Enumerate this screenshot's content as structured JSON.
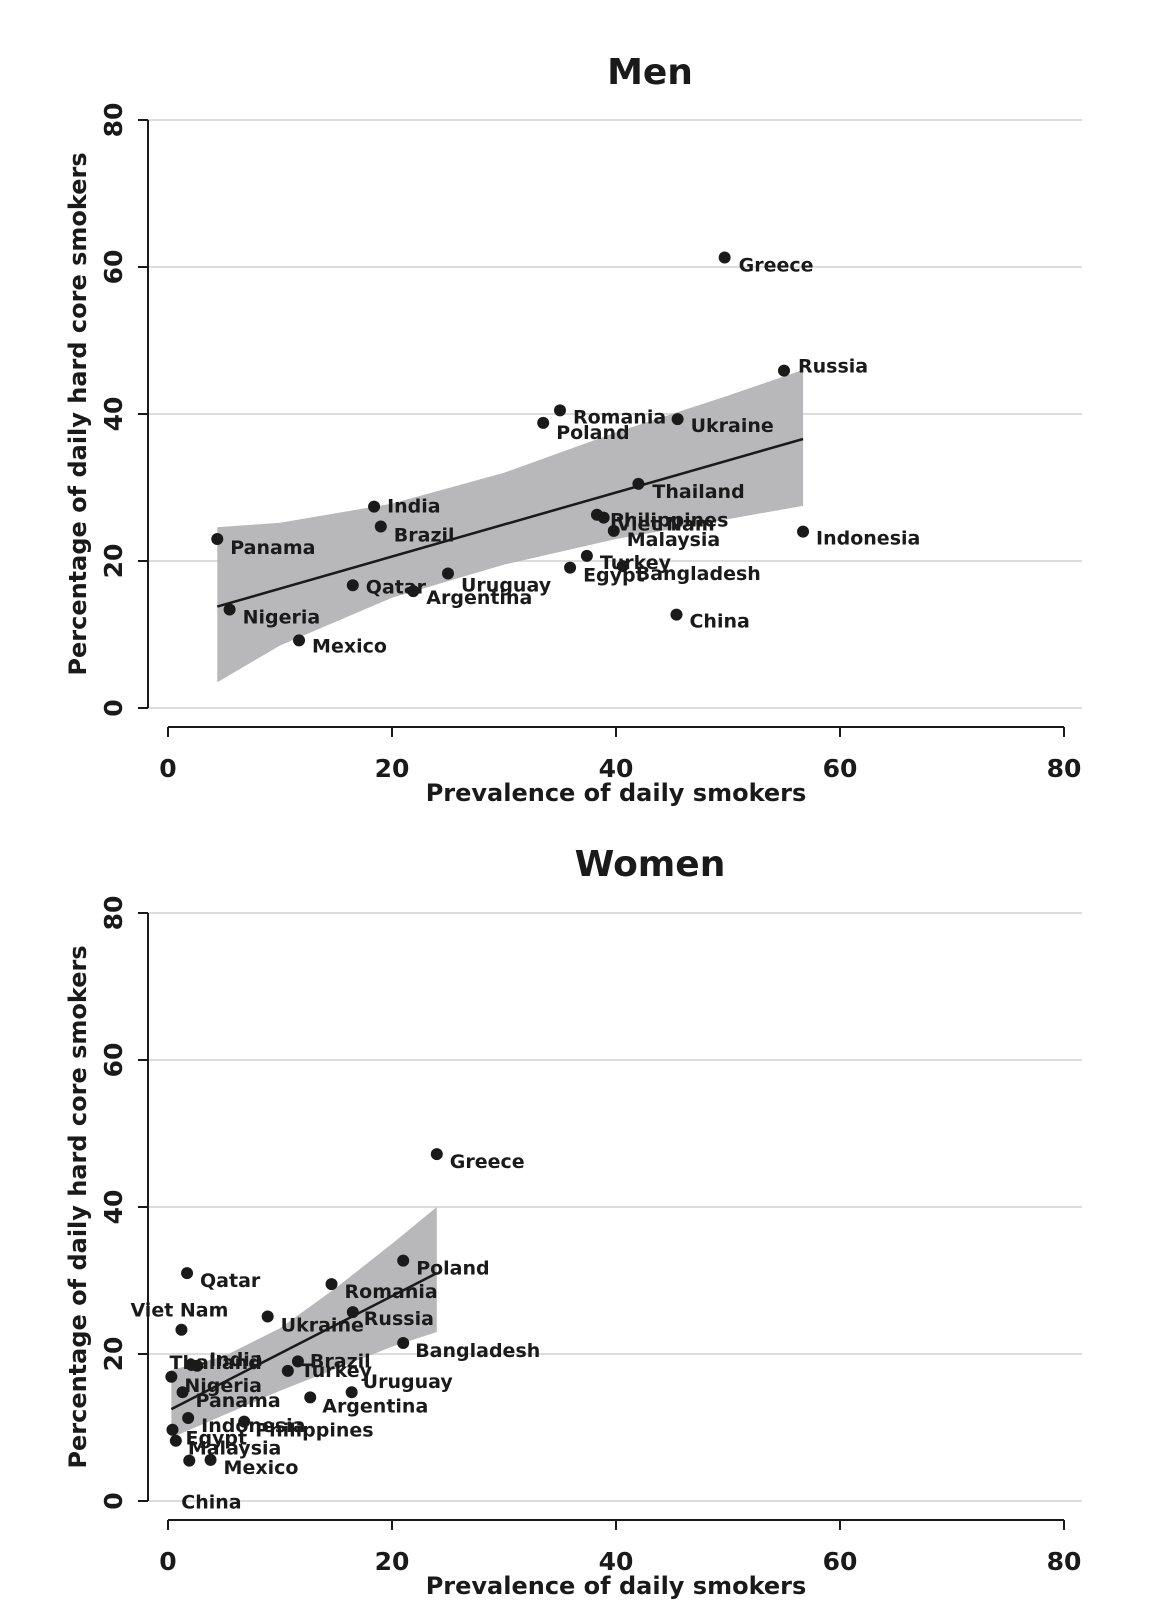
{
  "colors": {
    "band": "#b8b8ba",
    "point": "#1a1a1a",
    "grid": "#dcdcdc"
  },
  "chart_data": [
    {
      "type": "scatter",
      "title": "Men",
      "xlabel": "Prevalence of daily smokers",
      "ylabel": "Percentage of daily hard core smokers",
      "xlim": [
        0,
        80
      ],
      "ylim": [
        0,
        80
      ],
      "xticks": [
        "0",
        "20",
        "40",
        "60",
        "80"
      ],
      "yticks": [
        "0",
        "20",
        "40",
        "60",
        "80"
      ],
      "grid": "horizontal",
      "points": [
        {
          "label": "Greece",
          "x": 49.7,
          "y": 61.3
        },
        {
          "label": "Russia",
          "x": 55.0,
          "y": 45.9
        },
        {
          "label": "Romania",
          "x": 35.0,
          "y": 40.5
        },
        {
          "label": "Poland",
          "x": 33.5,
          "y": 38.8
        },
        {
          "label": "Ukraine",
          "x": 45.5,
          "y": 39.3
        },
        {
          "label": "Thailand",
          "x": 42.0,
          "y": 30.5
        },
        {
          "label": "India",
          "x": 18.4,
          "y": 27.4
        },
        {
          "label": "Brazil",
          "x": 19.0,
          "y": 24.7
        },
        {
          "label": "Philippines",
          "x": 38.3,
          "y": 26.3
        },
        {
          "label": "Viet Nam",
          "x": 38.9,
          "y": 25.9
        },
        {
          "label": "Malaysia",
          "x": 39.8,
          "y": 24.1
        },
        {
          "label": "Indonesia",
          "x": 56.7,
          "y": 24.0
        },
        {
          "label": "Panama",
          "x": 4.4,
          "y": 23.0
        },
        {
          "label": "Turkey",
          "x": 37.4,
          "y": 20.7
        },
        {
          "label": "Egypt",
          "x": 35.9,
          "y": 19.1
        },
        {
          "label": "Bangladesh",
          "x": 40.6,
          "y": 19.3
        },
        {
          "label": "Uruguay",
          "x": 25.0,
          "y": 18.3
        },
        {
          "label": "Qatar",
          "x": 16.5,
          "y": 16.7
        },
        {
          "label": "Argentina",
          "x": 21.9,
          "y": 15.9
        },
        {
          "label": "Nigeria",
          "x": 5.5,
          "y": 13.4
        },
        {
          "label": "China",
          "x": 45.4,
          "y": 12.7
        },
        {
          "label": "Mexico",
          "x": 11.7,
          "y": 9.2
        }
      ],
      "fit": {
        "x": [
          4.4,
          56.7
        ],
        "y": [
          13.8,
          36.6
        ]
      },
      "ci": {
        "x": [
          4.4,
          10,
          20,
          30,
          40,
          50,
          56.7
        ],
        "lower": [
          3.5,
          8.5,
          15.0,
          19.5,
          23.0,
          25.7,
          27.5
        ],
        "upper": [
          24.6,
          25.2,
          27.8,
          32.0,
          37.5,
          42.5,
          46.0
        ]
      }
    },
    {
      "type": "scatter",
      "title": "Women",
      "xlabel": "Prevalence of daily smokers",
      "ylabel": "Percentage of daily hard core smokers",
      "xlim": [
        0,
        80
      ],
      "ylim": [
        0,
        80
      ],
      "xticks": [
        "0",
        "20",
        "40",
        "60",
        "80"
      ],
      "yticks": [
        "0",
        "20",
        "40",
        "60",
        "80"
      ],
      "grid": "horizontal",
      "points": [
        {
          "label": "Greece",
          "x": 24.0,
          "y": 47.2
        },
        {
          "label": "Poland",
          "x": 21.0,
          "y": 32.7
        },
        {
          "label": "Qatar",
          "x": 1.7,
          "y": 31.0
        },
        {
          "label": "Romania",
          "x": 14.6,
          "y": 29.5
        },
        {
          "label": "Russia",
          "x": 16.5,
          "y": 25.7
        },
        {
          "label": "Ukraine",
          "x": 8.9,
          "y": 25.1
        },
        {
          "label": "Viet Nam",
          "x": 1.2,
          "y": 23.3
        },
        {
          "label": "Bangladesh",
          "x": 21.0,
          "y": 21.5
        },
        {
          "label": "Brazil",
          "x": 11.6,
          "y": 19.0
        },
        {
          "label": "India",
          "x": 2.6,
          "y": 18.4
        },
        {
          "label": "Thailand",
          "x": 2.1,
          "y": 18.5
        },
        {
          "label": "Turkey",
          "x": 10.7,
          "y": 17.7
        },
        {
          "label": "Nigeria",
          "x": 0.3,
          "y": 16.9
        },
        {
          "label": "Uruguay",
          "x": 16.4,
          "y": 14.8
        },
        {
          "label": "Panama",
          "x": 1.3,
          "y": 14.8
        },
        {
          "label": "Argentina",
          "x": 12.7,
          "y": 14.1
        },
        {
          "label": "Philippines",
          "x": 6.8,
          "y": 10.8
        },
        {
          "label": "Indonesia",
          "x": 1.8,
          "y": 11.3
        },
        {
          "label": "Egypt",
          "x": 0.4,
          "y": 9.7
        },
        {
          "label": "Malaysia",
          "x": 0.7,
          "y": 8.2
        },
        {
          "label": "Mexico",
          "x": 3.8,
          "y": 5.6
        },
        {
          "label": "China",
          "x": 1.9,
          "y": 5.5
        }
      ],
      "fit": {
        "x": [
          0.3,
          24.0
        ],
        "y": [
          12.5,
          31.0
        ]
      },
      "ci": {
        "x": [
          0.3,
          5,
          10,
          15,
          20,
          24.0
        ],
        "lower": [
          8.6,
          11.7,
          15.0,
          18.0,
          21.0,
          23.0
        ],
        "upper": [
          17.8,
          19.7,
          23.5,
          29.0,
          35.0,
          40.0
        ]
      }
    }
  ]
}
